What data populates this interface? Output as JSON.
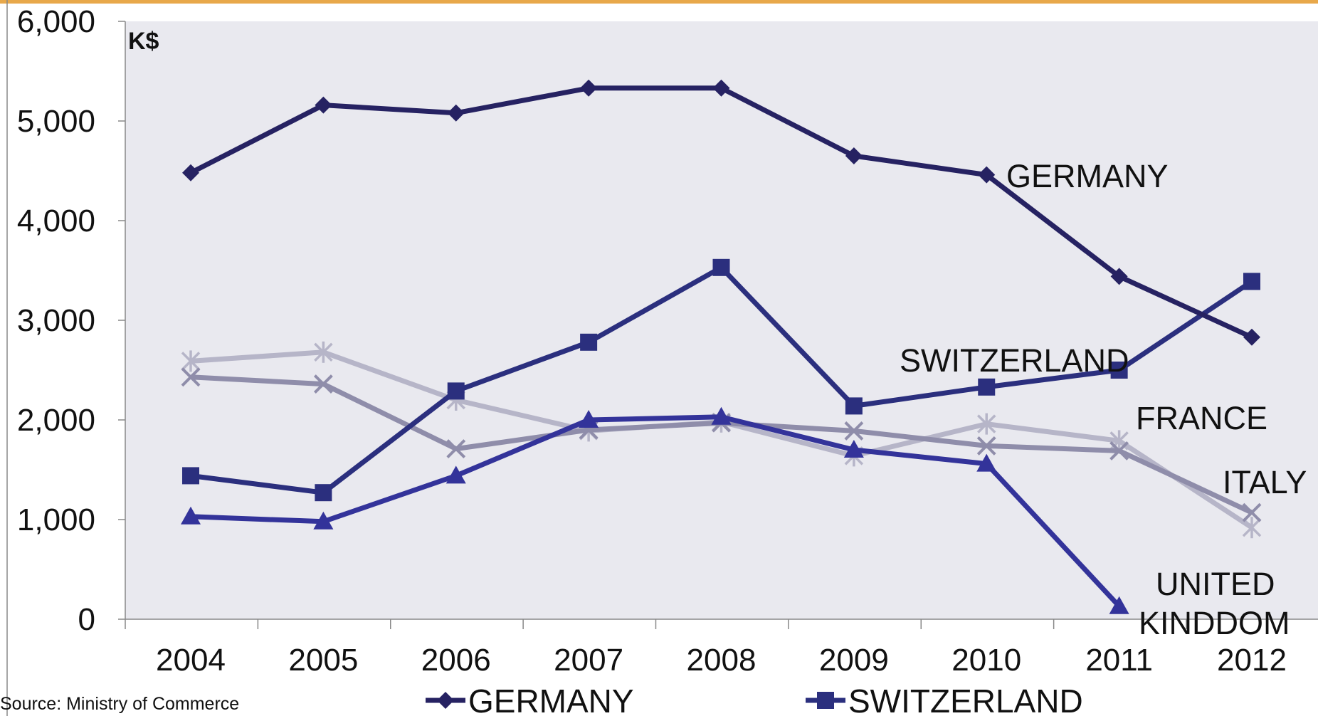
{
  "source_note": "Source: Ministry of Commerce",
  "chart_data": {
    "type": "line",
    "unit": "K$",
    "x": [
      "2004",
      "2005",
      "2006",
      "2007",
      "2008",
      "2009",
      "2010",
      "2011",
      "2012"
    ],
    "ylim": [
      0,
      6000
    ],
    "yticks": [
      0,
      1000,
      2000,
      3000,
      4000,
      5000,
      6000
    ],
    "ytick_labels": [
      "0",
      "1,000",
      "2,000",
      "3,000",
      "4,000",
      "5,000",
      "6,000"
    ],
    "grid": false,
    "legend_placement": "bottom",
    "series": [
      {
        "name": "GERMANY",
        "values": [
          4480,
          5160,
          5080,
          5330,
          5330,
          4650,
          4460,
          3440,
          2830
        ],
        "color": "#262262",
        "marker": "diamond",
        "label_lines": [
          "GERMANY"
        ]
      },
      {
        "name": "SWITZERLAND",
        "values": [
          1440,
          1270,
          2290,
          2780,
          3530,
          2140,
          2330,
          2500,
          3390
        ],
        "color": "#2B2F7E",
        "marker": "square",
        "label_lines": [
          "SWITZERLAND"
        ]
      },
      {
        "name": "UNITED KINDDOM",
        "values": [
          1030,
          980,
          1440,
          2000,
          2030,
          1700,
          1560,
          130,
          null
        ],
        "color": "#33339A",
        "marker": "triangle",
        "label_lines": [
          "UNITED",
          "KINDDOM"
        ]
      },
      {
        "name": "FRANCE",
        "values": [
          2590,
          2680,
          2200,
          1890,
          1980,
          1640,
          1960,
          1790,
          920
        ],
        "color": "#B6B5C8",
        "marker": "asterisk",
        "label_lines": [
          "FRANCE"
        ]
      },
      {
        "name": "ITALY",
        "values": [
          2430,
          2360,
          1710,
          1900,
          1970,
          1890,
          1740,
          1690,
          1070
        ],
        "color": "#8F8DAA",
        "marker": "x",
        "label_lines": [
          "ITALY"
        ]
      }
    ],
    "legend_entries": [
      "GERMANY",
      "SWITZERLAND"
    ]
  }
}
